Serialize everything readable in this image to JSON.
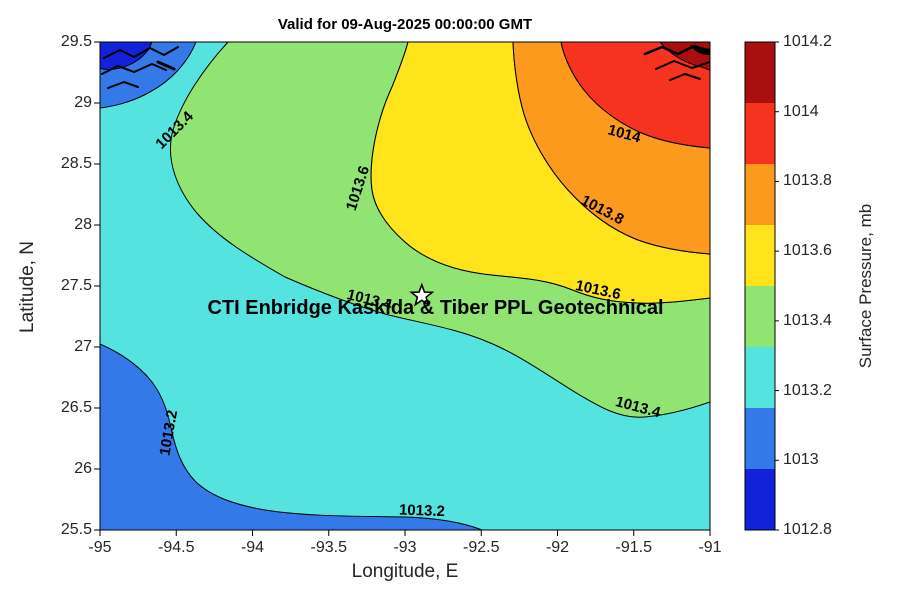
{
  "title": "Valid for 09-Aug-2025 00:00:00 GMT",
  "axes": {
    "xlabel": "Longitude, E",
    "ylabel": "Latitude, N",
    "x_range": [
      -95,
      -91
    ],
    "y_range": [
      25.5,
      29.5
    ],
    "x_ticks": [
      -95,
      -94.5,
      -94,
      -93.5,
      -93,
      -92.5,
      -92,
      -91.5,
      -91
    ],
    "y_ticks": [
      29.5,
      29,
      28.5,
      28,
      27.5,
      27,
      26.5,
      26,
      25.5
    ]
  },
  "colorbar": {
    "label": "Surface Pressure, mb",
    "range": [
      1012.8,
      1014.2
    ],
    "ticks": [
      1012.8,
      1013,
      1013.2,
      1013.4,
      1013.6,
      1013.8,
      1014,
      1014.2
    ],
    "band_colors_bottom_to_top": [
      "#1122D8",
      "#3379E8",
      "#55E3E0",
      "#90E572",
      "#FFE41C",
      "#FC9A1E",
      "#F5331F",
      "#A90F0F"
    ]
  },
  "chart_data": {
    "type": "contour",
    "title": "Valid for 09-Aug-2025 00:00:00 GMT",
    "xlabel": "Longitude, E",
    "ylabel": "Latitude, N",
    "xlim": [
      -95,
      -91
    ],
    "ylim": [
      25.5,
      29.5
    ],
    "z_label": "Surface Pressure, mb",
    "z_range_mb": [
      1012.8,
      1014.2
    ],
    "contour_interval_mb": 0.2,
    "contour_levels": [
      1013,
      1013.2,
      1013.4,
      1013.6,
      1013.8,
      1014
    ],
    "contour_labels": [
      {
        "value": 1013.4,
        "lon": -94.49,
        "lat": 28.75,
        "rot": -45
      },
      {
        "value": 1013.6,
        "lon": -93.28,
        "lat": 28.29,
        "rot": -72
      },
      {
        "value": 1013.8,
        "lon": -91.72,
        "lat": 28.09,
        "rot": 28
      },
      {
        "value": 1014,
        "lon": -91.57,
        "lat": 28.71,
        "rot": 15
      },
      {
        "value": 1013.6,
        "lon": -91.74,
        "lat": 27.43,
        "rot": 12
      },
      {
        "value": 1013.4,
        "lon": -93.24,
        "lat": 27.35,
        "rot": 14
      },
      {
        "value": 1013.4,
        "lon": -91.48,
        "lat": 26.47,
        "rot": 15
      },
      {
        "value": 1013.2,
        "lon": -94.52,
        "lat": 26.29,
        "rot": -80
      },
      {
        "value": 1013.2,
        "lon": -92.89,
        "lat": 25.62,
        "rot": 2
      }
    ],
    "marker": {
      "shape": "pentagram",
      "lon": -92.89,
      "lat": 27.42
    },
    "annotation": {
      "text": "CTI Enbridge  Kaskida & Tiber PPL Geotechnical",
      "lon": -92.8,
      "lat": 27.27
    },
    "coastlines_visible": [
      "northwest corner",
      "northeast corner"
    ],
    "field_description": "Surface pressure increases from below 1013.2 mb in the southwest to above 1014 mb in the northeast corner; filled contours every 0.2 mb."
  }
}
